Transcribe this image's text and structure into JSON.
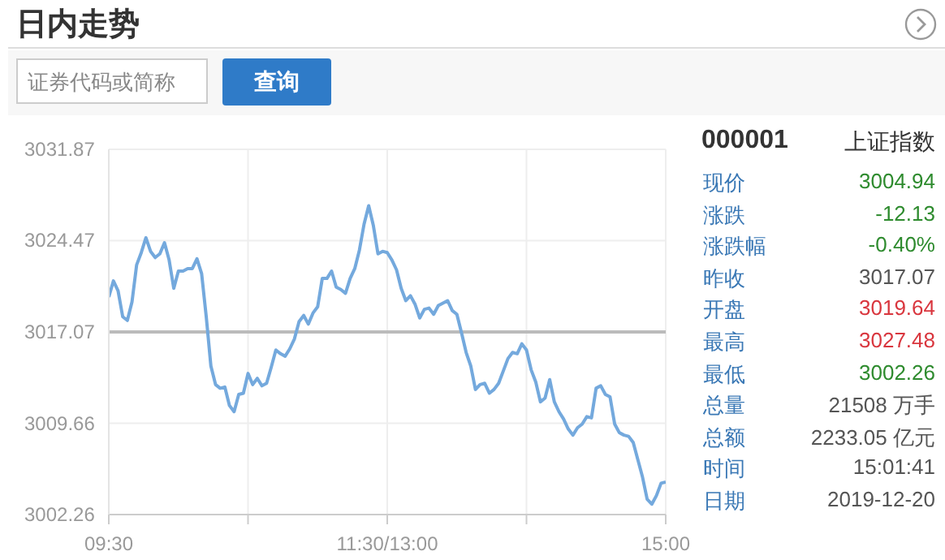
{
  "chart_data": [
    {
      "type": "line",
      "title": "日内走势",
      "annotations": [
        "证券代码或简称",
        "查询"
      ],
      "categories": [
        "09:30",
        null,
        null,
        null,
        null,
        null,
        null,
        null,
        null,
        null,
        null,
        null,
        null,
        null,
        null,
        null,
        null,
        null,
        null,
        null,
        null,
        null,
        null,
        null,
        null,
        null,
        null,
        null,
        null,
        null,
        null,
        null,
        null,
        null,
        null,
        null,
        null,
        null,
        null,
        null,
        null,
        null,
        null,
        null,
        null,
        null,
        null,
        null,
        null,
        null,
        null,
        null,
        null,
        null,
        null,
        null,
        null,
        null,
        null,
        null,
        "11:30/13:00",
        null,
        null,
        null,
        null,
        null,
        null,
        null,
        null,
        null,
        null,
        null,
        null,
        null,
        null,
        null,
        null,
        null,
        null,
        null,
        null,
        null,
        null,
        null,
        null,
        null,
        null,
        null,
        null,
        null,
        null,
        null,
        null,
        null,
        null,
        null,
        null,
        null,
        null,
        null,
        null,
        null,
        null,
        null,
        null,
        null,
        null,
        null,
        null,
        null,
        null,
        null,
        null,
        null,
        null,
        null,
        null,
        null,
        null,
        null,
        "15:00"
      ],
      "series": [
        {
          "color": "#74a9dd",
          "values": [
            3019.9,
            3021.2,
            3020.4,
            3018.3,
            3018.0,
            3019.5,
            3022.5,
            3023.5,
            3024.7,
            3023.6,
            3023.1,
            3023.4,
            3024.3,
            3022.9,
            3020.6,
            3022.0,
            3022.0,
            3022.2,
            3022.2,
            3023.0,
            3021.8,
            3018.3,
            3014.3,
            3012.8,
            3012.5,
            3012.6,
            3011.1,
            3010.6,
            3012.0,
            3012.1,
            3013.7,
            3012.8,
            3013.3,
            3012.7,
            3012.9,
            3014.2,
            3015.6,
            3015.3,
            3015.1,
            3015.7,
            3016.5,
            3017.9,
            3018.4,
            3017.7,
            3018.6,
            3019.1,
            3021.4,
            3021.4,
            3022.0,
            3020.7,
            3020.5,
            3020.2,
            3021.4,
            3022.2,
            3023.7,
            3025.8,
            3027.3,
            3025.7,
            3023.4,
            3023.6,
            3023.5,
            3022.9,
            3022.1,
            3020.6,
            3019.6,
            3020.0,
            3019.3,
            3018.2,
            3018.9,
            3019.0,
            3018.5,
            3019.2,
            3019.4,
            3019.6,
            3018.8,
            3018.5,
            3017.0,
            3015.4,
            3014.3,
            3012.4,
            3012.8,
            3012.9,
            3012.1,
            3012.4,
            3012.9,
            3013.9,
            3014.9,
            3015.4,
            3015.3,
            3016.1,
            3015.6,
            3014.0,
            3013.0,
            3011.4,
            3011.7,
            3013.2,
            3011.4,
            3010.6,
            3010.0,
            3009.2,
            3008.7,
            3009.3,
            3009.6,
            3010.2,
            3010.1,
            3012.5,
            3012.7,
            3012.0,
            3011.8,
            3009.6,
            3008.9,
            3008.7,
            3008.6,
            3008.1,
            3006.7,
            3005.3,
            3003.5,
            3003.1,
            3003.8,
            3004.8,
            3004.9
          ]
        }
      ],
      "ylim": [
        3002.26,
        3031.87
      ],
      "yticks": [
        3002.26,
        3009.66,
        3017.07,
        3024.47,
        3031.87
      ],
      "ref_lines": [
        {
          "axis": "y",
          "value": 3017.07,
          "color": "#bbbbbb"
        }
      ],
      "grid": true,
      "marker": "none",
      "line_style": "solid"
    },
    {
      "type": "other",
      "title": "000001",
      "subtitle": "上证指数",
      "categories": [
        "现价",
        "涨跌",
        "涨跌幅",
        "昨收",
        "开盘",
        "最高",
        "最低",
        "总量",
        "总额",
        "时间",
        "日期"
      ],
      "value_labels": [
        "3004.94",
        "-12.13",
        "-0.40%",
        "3017.07",
        "3019.64",
        "3027.48",
        "3002.26",
        "21508 万手",
        "2233.05 亿元",
        "15:01:41",
        "2019-12-20"
      ],
      "colors": [
        "#2e8b2e",
        "#2e8b2e",
        "#2e8b2e",
        "#555555",
        "#d9363e",
        "#d9363e",
        "#2e8b2e",
        "#555555",
        "#555555",
        "#555555",
        "#555555"
      ]
    }
  ]
}
